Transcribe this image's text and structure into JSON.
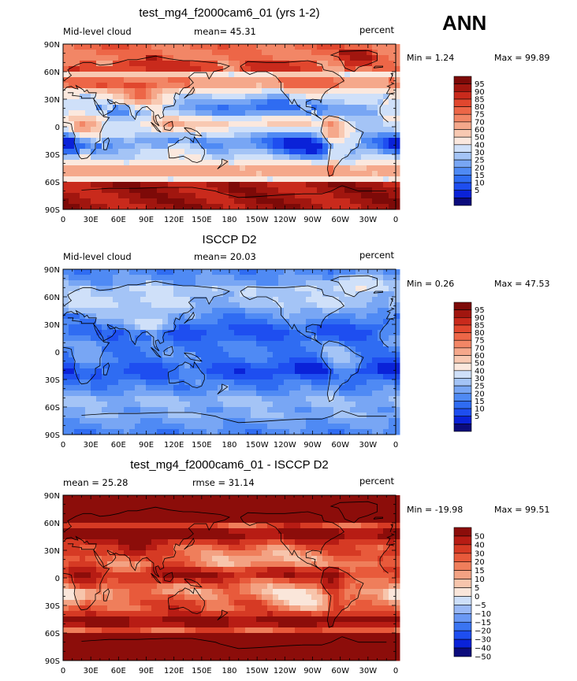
{
  "page": {
    "season": "ANN"
  },
  "palettes": {
    "abs": [
      "#0c0c7c",
      "#0a22d8",
      "#1e4ef0",
      "#2f6cf2",
      "#4f8af4",
      "#78a6f4",
      "#a4c4f6",
      "#cfe0f9",
      "#fbe8de",
      "#f8c9b2",
      "#f5a88b",
      "#f28666",
      "#ed6647",
      "#e1472e",
      "#c92a1c",
      "#a1160f",
      "#7d0a08"
    ],
    "diff": [
      "#0c0c7c",
      "#0a22d8",
      "#1e4ef0",
      "#3a74f2",
      "#6a98f4",
      "#9ab9f6",
      "#cddff9",
      "#fae6da",
      "#f7c5ac",
      "#f3a283",
      "#ef7e5b",
      "#e85a3b",
      "#d63a24",
      "#b71c14",
      "#8c0d0a"
    ]
  },
  "chart_data": [
    {
      "type": "heatmap",
      "title": "test_mg4_f2000cam6_01 (yrs 1-2)",
      "left_label": "Mid-level cloud",
      "center_label": "mean=  45.31",
      "right_label": "percent",
      "stats": {
        "min_text": "Min =   1.24",
        "max_text": "Max =  99.89"
      },
      "min": 1.24,
      "max": 99.89,
      "mean": 45.31,
      "x_ticks": [
        "0",
        "30E",
        "60E",
        "90E",
        "120E",
        "150E",
        "180",
        "150W",
        "120W",
        "90W",
        "60W",
        "30W",
        "0"
      ],
      "y_ticks": [
        "90N",
        "60N",
        "30N",
        "0",
        "30S",
        "60S",
        "90S"
      ],
      "colorbar": {
        "labels": [
          "95",
          "90",
          "85",
          "80",
          "75",
          "70",
          "60",
          "50",
          "40",
          "30",
          "25",
          "20",
          "15",
          "10",
          "5"
        ],
        "palette": "abs"
      },
      "field": "model"
    },
    {
      "type": "heatmap",
      "title": "ISCCP D2",
      "left_label": "Mid-level cloud",
      "center_label": "mean=  20.03",
      "right_label": "percent",
      "stats": {
        "min_text": "Min =   0.26",
        "max_text": "Max =  47.53"
      },
      "min": 0.26,
      "max": 47.53,
      "mean": 20.03,
      "x_ticks": [
        "0",
        "30E",
        "60E",
        "90E",
        "120E",
        "150E",
        "180",
        "150W",
        "120W",
        "90W",
        "60W",
        "30W",
        "0"
      ],
      "y_ticks": [
        "90N",
        "60N",
        "30N",
        "0",
        "30S",
        "60S",
        "90S"
      ],
      "colorbar": {
        "labels": [
          "95",
          "90",
          "85",
          "80",
          "75",
          "70",
          "60",
          "50",
          "40",
          "30",
          "25",
          "20",
          "15",
          "10",
          "5"
        ],
        "palette": "abs"
      },
      "field": "obs"
    },
    {
      "type": "heatmap",
      "title": "test_mg4_f2000cam6_01 - ISCCP D2",
      "left_label": "mean =  25.28",
      "center_label": "rmse =  31.14",
      "right_label": "percent",
      "stats": {
        "min_text": "Min = -19.98",
        "max_text": "Max =  99.51"
      },
      "min": -19.98,
      "max": 99.51,
      "mean": 25.28,
      "rmse": 31.14,
      "x_ticks": [
        "0",
        "30E",
        "60E",
        "90E",
        "120E",
        "150E",
        "180",
        "150W",
        "120W",
        "90W",
        "60W",
        "30W",
        "0"
      ],
      "y_ticks": [
        "90N",
        "60N",
        "30N",
        "0",
        "30S",
        "60S",
        "90S"
      ],
      "colorbar": {
        "labels": [
          "50",
          "40",
          "30",
          "20",
          "15",
          "10",
          "5",
          "0",
          "−5",
          "−10",
          "−15",
          "−20",
          "−30",
          "−40",
          "−50"
        ],
        "palette": "diff"
      },
      "field": "diff"
    }
  ]
}
